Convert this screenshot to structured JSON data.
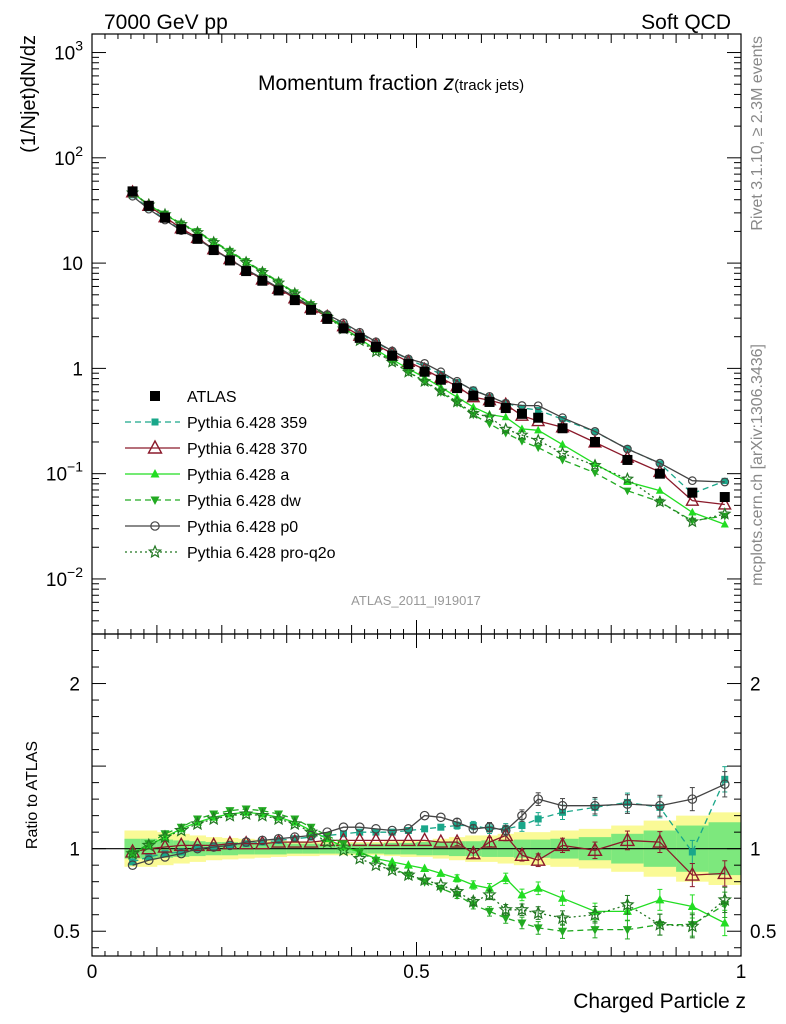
{
  "header": {
    "left": "7000 GeV pp",
    "right": "Soft QCD"
  },
  "side_labels": {
    "rivet": "Rivet 3.1.10, ≥ 2.3M events",
    "mcplots": "mcplots.cern.ch [arXiv:1306.3436]"
  },
  "colors": {
    "atlas": "#000000",
    "p359": "#1aa78a",
    "p370": "#8b1a2b",
    "pa": "#22dd22",
    "pdw": "#22aa22",
    "pp0": "#444444",
    "pq2o": "#227722",
    "band_inner": "#7de87d",
    "band_outer": "#fafa96"
  },
  "chart_data": {
    "type": "line",
    "title_main": "Momentum fraction ",
    "title_var": "z",
    "title_sub": "(track jets)",
    "watermark": "ATLAS_2011_I919017",
    "xlabel": "Charged Particle z",
    "ylabel": "(1/Njet)dN/dz",
    "ratio_ylabel": "Ratio to ATLAS",
    "xlim": [
      0,
      1
    ],
    "ylim": [
      0.003,
      1500
    ],
    "ylog": true,
    "ratio_ylim": [
      0.35,
      2.3
    ],
    "legend_position": "bottom-left",
    "x_ticks": [
      "0",
      "0.5",
      "1"
    ],
    "y_ticks": [
      {
        "base": "10",
        "exp": "3"
      },
      {
        "base": "10",
        "exp": "2"
      },
      {
        "base": "10",
        "exp": ""
      },
      {
        "base": "1",
        "exp": ""
      },
      {
        "base": "10",
        "exp": "−1"
      },
      {
        "base": "10",
        "exp": "−2"
      }
    ],
    "ratio_ticks": [
      "2",
      "1",
      "0.5"
    ],
    "x": [
      0.0625,
      0.0875,
      0.1125,
      0.1375,
      0.1625,
      0.1875,
      0.2125,
      0.2375,
      0.2625,
      0.2875,
      0.3125,
      0.3375,
      0.3625,
      0.3875,
      0.4125,
      0.4375,
      0.4625,
      0.4875,
      0.5125,
      0.5375,
      0.5625,
      0.5875,
      0.6125,
      0.6375,
      0.6625,
      0.6875,
      0.725,
      0.775,
      0.825,
      0.875,
      0.925,
      0.975
    ],
    "ref": {
      "name": "ATLAS",
      "values": [
        48,
        35,
        27,
        21,
        17,
        13.3,
        10.6,
        8.4,
        6.8,
        5.5,
        4.45,
        3.6,
        2.95,
        2.4,
        1.95,
        1.6,
        1.32,
        1.1,
        0.93,
        0.78,
        0.65,
        0.55,
        0.48,
        0.42,
        0.37,
        0.34,
        0.27,
        0.2,
        0.135,
        0.1,
        0.066,
        0.06
      ],
      "band_inner": [
        0.06,
        0.06,
        0.055,
        0.05,
        0.045,
        0.04,
        0.04,
        0.035,
        0.035,
        0.035,
        0.03,
        0.03,
        0.03,
        0.03,
        0.03,
        0.03,
        0.035,
        0.035,
        0.04,
        0.04,
        0.045,
        0.045,
        0.05,
        0.05,
        0.055,
        0.055,
        0.06,
        0.07,
        0.09,
        0.11,
        0.14,
        0.16
      ],
      "band_outer": [
        0.11,
        0.11,
        0.1,
        0.09,
        0.08,
        0.07,
        0.065,
        0.06,
        0.055,
        0.05,
        0.045,
        0.045,
        0.04,
        0.04,
        0.04,
        0.04,
        0.045,
        0.05,
        0.05,
        0.06,
        0.07,
        0.08,
        0.08,
        0.09,
        0.1,
        0.1,
        0.11,
        0.12,
        0.14,
        0.17,
        0.2,
        0.22
      ]
    },
    "series": [
      {
        "name": "Pythia 6.428 359",
        "color_key": "p359",
        "dash": "6,4",
        "marker": "square",
        "ratio": [
          0.92,
          0.95,
          0.97,
          0.98,
          1.0,
          1.01,
          1.02,
          1.03,
          1.04,
          1.05,
          1.06,
          1.07,
          1.08,
          1.09,
          1.1,
          1.1,
          1.1,
          1.11,
          1.12,
          1.13,
          1.14,
          1.14,
          1.12,
          1.12,
          1.14,
          1.18,
          1.22,
          1.25,
          1.28,
          1.25,
          0.98,
          1.42
        ]
      },
      {
        "name": "Pythia 6.428 370",
        "color_key": "p370",
        "dash": "",
        "marker": "triangle-open",
        "ratio": [
          0.98,
          1.0,
          1.01,
          1.02,
          1.02,
          1.02,
          1.03,
          1.03,
          1.03,
          1.04,
          1.04,
          1.04,
          1.05,
          1.05,
          1.05,
          1.05,
          1.05,
          1.05,
          1.05,
          1.04,
          1.04,
          0.97,
          1.04,
          1.08,
          0.96,
          0.93,
          1.02,
          0.99,
          1.05,
          1.04,
          0.84,
          0.85
        ]
      },
      {
        "name": "Pythia 6.428 a",
        "color_key": "pa",
        "dash": "",
        "marker": "triangle-filled",
        "ratio": [
          0.97,
          1.02,
          1.07,
          1.12,
          1.16,
          1.19,
          1.21,
          1.22,
          1.21,
          1.19,
          1.16,
          1.11,
          1.06,
          1.01,
          0.98,
          0.94,
          0.92,
          0.9,
          0.88,
          0.85,
          0.82,
          0.78,
          0.76,
          0.82,
          0.72,
          0.76,
          0.7,
          0.62,
          0.62,
          0.69,
          0.65,
          0.55
        ]
      },
      {
        "name": "Pythia 6.428 dw",
        "color_key": "pdw",
        "dash": "6,4",
        "marker": "triangle-down",
        "ratio": [
          0.97,
          1.03,
          1.09,
          1.13,
          1.18,
          1.21,
          1.23,
          1.24,
          1.23,
          1.21,
          1.18,
          1.13,
          1.08,
          1.03,
          0.98,
          0.93,
          0.88,
          0.84,
          0.8,
          0.76,
          0.72,
          0.66,
          0.62,
          0.58,
          0.55,
          0.52,
          0.5,
          0.51,
          0.51,
          0.54,
          0.54,
          0.66
        ]
      },
      {
        "name": "Pythia 6.428 p0",
        "color_key": "pp0",
        "dash": "",
        "marker": "circle-open",
        "ratio": [
          0.9,
          0.93,
          0.95,
          0.97,
          1.0,
          1.01,
          1.02,
          1.04,
          1.05,
          1.06,
          1.07,
          1.08,
          1.1,
          1.13,
          1.13,
          1.12,
          1.11,
          1.12,
          1.2,
          1.19,
          1.16,
          1.12,
          1.13,
          1.11,
          1.2,
          1.3,
          1.26,
          1.26,
          1.27,
          1.26,
          1.3,
          1.39
        ]
      },
      {
        "name": "Pythia 6.428 pro-q2o",
        "color_key": "pq2o",
        "dash": "2,3",
        "marker": "star-open",
        "ratio": [
          0.97,
          1.02,
          1.07,
          1.11,
          1.15,
          1.18,
          1.2,
          1.21,
          1.2,
          1.18,
          1.15,
          1.1,
          1.04,
          0.99,
          0.94,
          0.9,
          0.87,
          0.84,
          0.81,
          0.78,
          0.74,
          0.68,
          0.72,
          0.63,
          0.63,
          0.61,
          0.58,
          0.6,
          0.66,
          0.54,
          0.53,
          0.69
        ]
      }
    ]
  }
}
